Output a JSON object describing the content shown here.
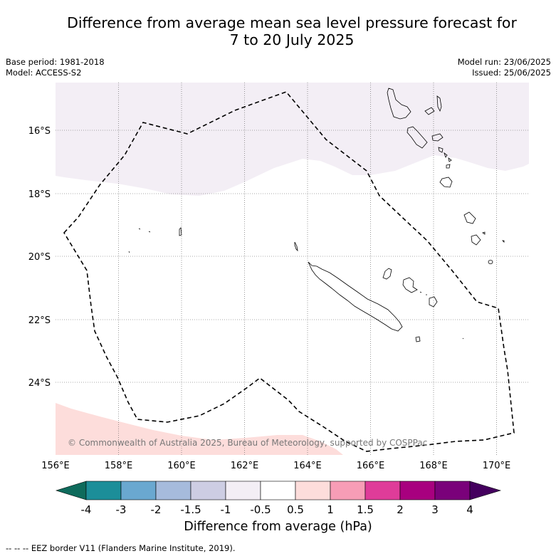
{
  "title_line1": "Difference from average mean sea level pressure forecast for",
  "title_line2": "7 to 20 July 2025",
  "base_period": "Base period: 1981-2018",
  "model": "Model: ACCESS-S2",
  "model_run": "Model run: 23/06/2025",
  "issued": "Issued: 25/06/2025",
  "copyright": "© Commonwealth of Australia 2025, Bureau of Meteorology, supported by COSPPac",
  "lat_labels": [
    "16°S",
    "18°S",
    "20°S",
    "22°S",
    "24°S"
  ],
  "lon_labels": [
    "156°E",
    "158°E",
    "160°E",
    "162°E",
    "164°E",
    "166°E",
    "168°E",
    "170°E"
  ],
  "colorbar": {
    "title": "Difference from average (hPa)",
    "tick_labels": [
      "-4",
      "-3",
      "-2",
      "-1.5",
      "-1",
      "-0.5",
      "0.5",
      "1",
      "1.5",
      "2",
      "3",
      "4"
    ],
    "colors": [
      "#0e6b5c",
      "#1c8e99",
      "#6aa8d0",
      "#a6bbdc",
      "#cdcde3",
      "#f3eef5",
      "#ffffff",
      "#fddddb",
      "#f79db6",
      "#df3c99",
      "#a8007f",
      "#7a017a",
      "#44005e"
    ]
  },
  "footer": "-- -- -- EEZ border V11 (Flanders Marine Institute, 2019)."
}
